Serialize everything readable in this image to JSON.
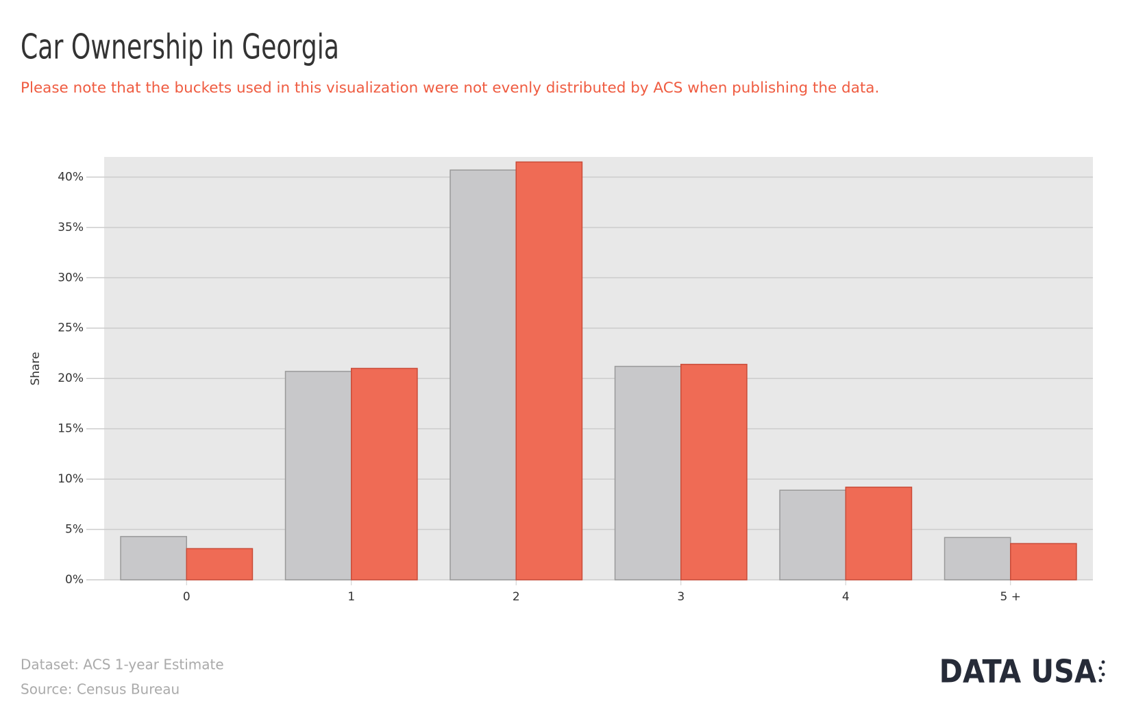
{
  "chart_data": {
    "type": "bar",
    "title": "Car Ownership in Georgia",
    "subtitle": "Please note that the buckets used in this visualization were not evenly distributed by ACS when publishing the data.",
    "y_label": "Share",
    "categories": [
      "0",
      "1",
      "2",
      "3",
      "4",
      "5 +"
    ],
    "series": [
      {
        "color": "#c8c8ca",
        "values": [
          4.3,
          20.7,
          40.7,
          21.2,
          8.9,
          4.2
        ]
      },
      {
        "color": "#ef6b55",
        "values": [
          3.1,
          21.0,
          41.5,
          21.4,
          9.2,
          3.6
        ]
      }
    ],
    "ylim": [
      0,
      42
    ],
    "yticks": [
      {
        "value": 0,
        "label": "0%"
      },
      {
        "value": 5,
        "label": "5%"
      },
      {
        "value": 10,
        "label": "10%"
      },
      {
        "value": 15,
        "label": "15%"
      },
      {
        "value": 20,
        "label": "20%"
      },
      {
        "value": 25,
        "label": "25%"
      },
      {
        "value": 30,
        "label": "30%"
      },
      {
        "value": 35,
        "label": "35%"
      },
      {
        "value": 40,
        "label": "40%"
      }
    ],
    "grid": true,
    "footer": {
      "dataset": "Dataset: ACS 1-year Estimate",
      "source": "Census Bureau",
      "source_prefix": "Source:",
      "logo": "DATA USA"
    }
  }
}
